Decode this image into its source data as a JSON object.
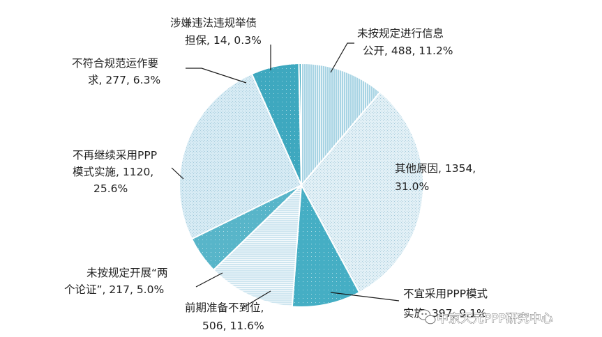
{
  "chart_data": {
    "type": "pie",
    "title": "",
    "start_angle_deg": 0,
    "direction": "clockwise",
    "slices": [
      {
        "name": "未按规定进行信息公开",
        "label_lines": [
          "未按规定进行信息",
          "公开, 488, 11.2%"
        ],
        "value": 488,
        "percent": 11.2,
        "color": "#a8d4e4",
        "pattern": "vlines"
      },
      {
        "name": "其他原因",
        "label_lines": [
          "其他原因, 1354,",
          "31.0%"
        ],
        "value": 1354,
        "percent": 31.0,
        "color": "#e2f0f6",
        "pattern": "dots"
      },
      {
        "name": "不宜采用PPP模式实施",
        "label_lines": [
          "不宜采用PPP模式",
          "实施, 397, 9.1%"
        ],
        "value": 397,
        "percent": 9.1,
        "color": "#45aec4",
        "pattern": "sparse"
      },
      {
        "name": "前期准备不到位",
        "label_lines": [
          "前期准备不到位,",
          "506, 11.6%"
        ],
        "value": 506,
        "percent": 11.6,
        "color": "#cfe6f0",
        "pattern": "hlines"
      },
      {
        "name": "未按规定开展“两个论证”",
        "label_lines": [
          "未按规定开展“两",
          "个论证”, 217, 5.0%"
        ],
        "value": 217,
        "percent": 5.0,
        "color": "#58b5c9",
        "pattern": "sparse"
      },
      {
        "name": "不再继续采用PPP模式实施",
        "label_lines": [
          "不再继续采用PPP",
          "模式实施, 1120,",
          "25.6%"
        ],
        "value": 1120,
        "percent": 25.6,
        "color": "#d7ebf4",
        "pattern": "dots"
      },
      {
        "name": "不符合规范运作要求",
        "label_lines": [
          "不符合规范运作要",
          "求, 277, 6.3%"
        ],
        "value": 277,
        "percent": 6.3,
        "color": "#3ea8bf",
        "pattern": "sparse"
      },
      {
        "name": "涉嫌违法违规举债担保",
        "label_lines": [
          "涉嫌违法违规举债",
          "担保, 14, 0.3%"
        ],
        "value": 14,
        "percent": 0.3,
        "color": "#3ea8bf",
        "pattern": "sparse"
      }
    ]
  },
  "watermark": {
    "icon": "wechat-icon",
    "text": "中京天元PPP研究中心"
  }
}
